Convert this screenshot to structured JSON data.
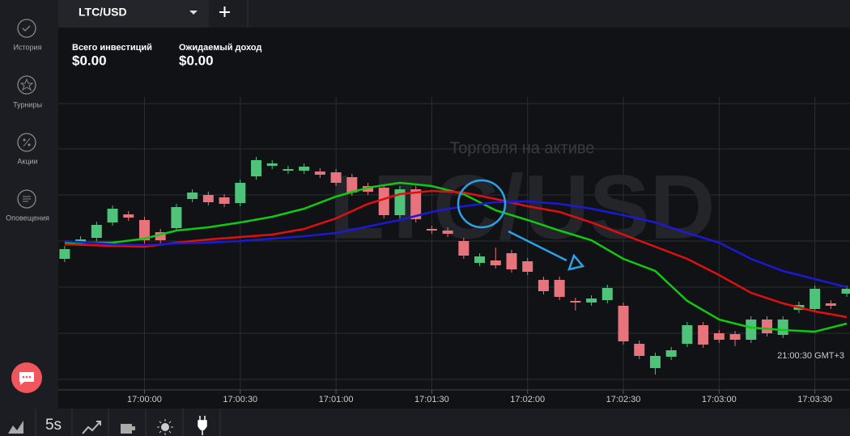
{
  "tab": {
    "symbol": "LTC/USD"
  },
  "sidebar": {
    "items": [
      "История",
      "Турниры",
      "Акции",
      "Оповещения"
    ]
  },
  "stats": [
    {
      "label": "Всего инвестиций",
      "value": "$0.00"
    },
    {
      "label": "Ожидаемый доход",
      "value": "$0.00"
    }
  ],
  "chart_data": {
    "type": "candlestick",
    "watermark": "LTC/USD",
    "subtitle": "Торговля на активе",
    "server_time": "21:00:30 GMT+3",
    "x": [
      -25,
      -20,
      -15,
      -10,
      -5,
      0,
      5,
      10,
      15,
      20,
      25,
      30,
      35,
      40,
      45,
      50,
      55,
      60,
      65,
      70,
      75,
      80,
      85,
      90,
      95,
      100,
      105,
      110,
      115,
      120,
      125,
      130,
      135,
      140,
      145,
      150,
      155,
      160,
      165,
      170,
      175,
      180,
      185,
      190,
      195,
      200,
      205,
      210,
      215,
      220
    ],
    "open": [
      180,
      200,
      206,
      225,
      235,
      228,
      213,
      218,
      254,
      259,
      256,
      249,
      282,
      295,
      289,
      289,
      288,
      287,
      281,
      270,
      268,
      234,
      266,
      217,
      215,
      202,
      175,
      178,
      187,
      177,
      154,
      154,
      128,
      126,
      129,
      122,
      75,
      45,
      59,
      75,
      98,
      88,
      87,
      80,
      105,
      86,
      117,
      118,
      125,
      137
    ],
    "close": [
      192,
      204,
      222,
      242,
      231,
      203,
      203,
      244,
      262,
      250,
      248,
      274,
      302,
      298,
      291,
      294,
      284,
      274,
      262,
      263,
      234,
      266,
      229,
      215,
      211,
      184,
      183,
      172,
      167,
      164,
      140,
      133,
      126,
      131,
      144,
      78,
      60,
      60,
      67,
      98,
      74,
      80,
      80,
      105,
      88,
      105,
      123,
      143,
      122,
      143
    ],
    "high": [
      196,
      208,
      226,
      246,
      239,
      232,
      217,
      248,
      266,
      263,
      260,
      278,
      306,
      302,
      295,
      298,
      292,
      291,
      285,
      274,
      272,
      270,
      270,
      221,
      219,
      206,
      187,
      194,
      191,
      181,
      158,
      158,
      132,
      135,
      148,
      126,
      79,
      64,
      71,
      102,
      102,
      92,
      91,
      109,
      109,
      109,
      127,
      147,
      129,
      147
    ],
    "low": [
      176,
      196,
      202,
      221,
      227,
      199,
      199,
      214,
      250,
      246,
      244,
      245,
      278,
      291,
      285,
      285,
      280,
      270,
      258,
      259,
      230,
      230,
      225,
      211,
      207,
      180,
      171,
      168,
      163,
      160,
      136,
      129,
      116,
      122,
      125,
      74,
      56,
      37,
      55,
      71,
      70,
      76,
      72,
      76,
      84,
      82,
      113,
      114,
      118,
      133
    ],
    "up_color": "#4fc37a",
    "down_color": "#e7737c",
    "moving_averages": [
      {
        "color": "#12c812",
        "x": [
          -25,
          -10,
          0,
          10,
          20,
          30,
          40,
          50,
          60,
          70,
          80,
          90,
          100,
          110,
          120,
          130,
          140,
          150,
          160,
          170,
          180,
          190,
          200,
          210,
          220
        ],
        "values": [
          200,
          200,
          205,
          215,
          219,
          225,
          232,
          242,
          257,
          268,
          274,
          270,
          260,
          240,
          228,
          215,
          203,
          180,
          165,
          128,
          105,
          95,
          92,
          90,
          100
        ]
      },
      {
        "color": "#e01010",
        "x": [
          -25,
          -10,
          0,
          10,
          20,
          30,
          40,
          50,
          60,
          70,
          80,
          90,
          100,
          110,
          120,
          130,
          140,
          150,
          160,
          170,
          180,
          190,
          200,
          210,
          220
        ],
        "values": [
          198,
          196,
          195,
          200,
          204,
          207,
          210,
          217,
          230,
          248,
          260,
          264,
          262,
          254,
          245,
          238,
          225,
          210,
          195,
          180,
          160,
          138,
          125,
          115,
          108
        ]
      },
      {
        "color": "#1a1ad4",
        "x": [
          -25,
          -10,
          0,
          10,
          20,
          30,
          40,
          50,
          60,
          70,
          80,
          90,
          100,
          110,
          120,
          130,
          140,
          150,
          160,
          170,
          180,
          190,
          200,
          210,
          220
        ],
        "values": [
          202,
          198,
          197,
          199,
          200,
          202,
          205,
          208,
          212,
          220,
          228,
          238,
          245,
          250,
          251,
          248,
          242,
          234,
          225,
          212,
          200,
          180,
          165,
          155,
          145
        ]
      }
    ],
    "xlim": [
      -27,
      221
    ],
    "ylim": [
      18,
      380
    ],
    "xticks": [
      {
        "value": 0,
        "label": "17:00:00"
      },
      {
        "value": 30,
        "label": "17:00:30"
      },
      {
        "value": 60,
        "label": "17:01:00"
      },
      {
        "value": 90,
        "label": "17:01:30"
      },
      {
        "value": 120,
        "label": "17:02:00"
      },
      {
        "value": 150,
        "label": "17:02:30"
      },
      {
        "value": 180,
        "label": "17:03:00"
      },
      {
        "value": 210,
        "label": "17:03:30"
      }
    ]
  },
  "toolbar": {
    "interval": "5s"
  }
}
